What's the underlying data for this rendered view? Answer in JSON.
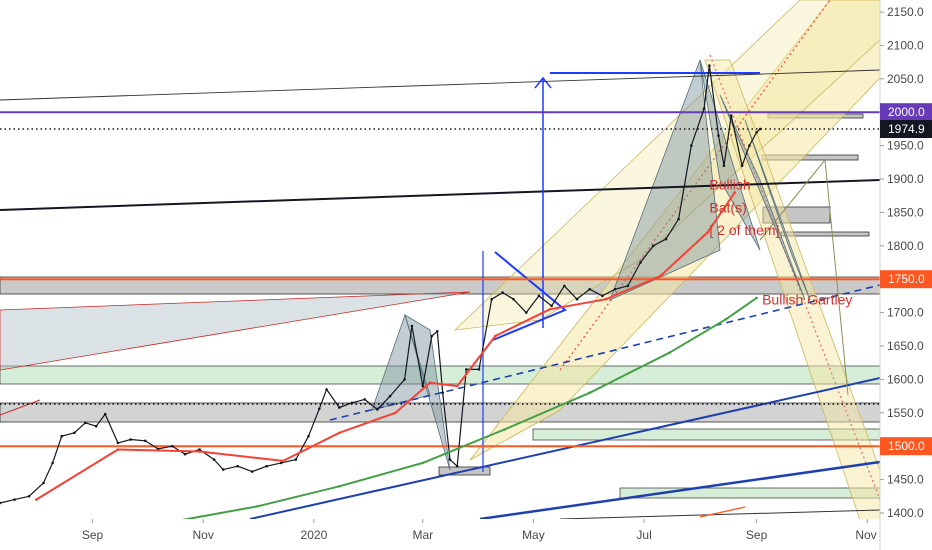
{
  "chart_data": {
    "type": "line",
    "y_axis": {
      "ticks": [
        2150,
        2100,
        2050,
        2000,
        1950,
        1900,
        1850,
        1800,
        1750,
        1700,
        1650,
        1600,
        1550,
        1500,
        1450,
        1400
      ],
      "tick_labels": [
        "2150.0",
        "2100.0",
        "2050.0",
        "2000.0",
        "1950.0",
        "1900.0",
        "1850.0",
        "1800.0",
        "1750.0",
        "1700.0",
        "1650.0",
        "1600.0",
        "1550.0",
        "1500.0",
        "1450.0",
        "1400.0"
      ],
      "ylim": [
        1391,
        2168
      ]
    },
    "x_axis": {
      "tick_labels": [
        "Sep",
        "Nov",
        "2020",
        "Mar",
        "May",
        "Jul",
        "Sep",
        "Nov"
      ],
      "tick_dates": [
        "2019-09-01",
        "2019-11-01",
        "2020-01-01",
        "2020-03-01",
        "2020-05-01",
        "2020-07-01",
        "2020-09-01",
        "2020-11-01"
      ],
      "xlim": [
        "2019-07-12",
        "2020-11-08"
      ]
    },
    "price_labels": [
      {
        "text": "2150.0",
        "value": 2150
      },
      {
        "text": "2000.0",
        "value": 2000,
        "highlight": true,
        "bg": "#673ab7"
      },
      {
        "text": "1974.9",
        "value": 1974.9,
        "highlight": true,
        "bg": "#131722"
      },
      {
        "text": "1750.0",
        "value": 1750,
        "highlight": true,
        "bg": "#ff5722"
      },
      {
        "text": "1500.0",
        "value": 1500,
        "highlight": true,
        "bg": "#ff5722"
      }
    ],
    "horizontal_levels": [
      {
        "value": 2000,
        "color": "#673ab7"
      },
      {
        "value": 1750,
        "color": "#ff5722"
      },
      {
        "value": 1500,
        "color": "#ff5722"
      },
      {
        "value": 1974.9,
        "color": "#131722",
        "style": "dotted"
      },
      {
        "value": 1563,
        "color": "#131722",
        "style": "dotted"
      }
    ],
    "series": [
      {
        "color": "#131722",
        "x": [
          "2019-07-12",
          "2019-07-20",
          "2019-07-28",
          "2019-08-05",
          "2019-08-10",
          "2019-08-15",
          "2019-08-22",
          "2019-08-28",
          "2019-09-03",
          "2019-09-08",
          "2019-09-15",
          "2019-09-22",
          "2019-09-30",
          "2019-10-07",
          "2019-10-15",
          "2019-10-22",
          "2019-10-30",
          "2019-11-07",
          "2019-11-12",
          "2019-11-20",
          "2019-11-28",
          "2019-12-06",
          "2019-12-14",
          "2019-12-22",
          "2019-12-29",
          "2020-01-04",
          "2020-01-08",
          "2020-01-15",
          "2020-01-22",
          "2020-01-29",
          "2020-02-05",
          "2020-02-12",
          "2020-02-20",
          "2020-02-24",
          "2020-03-01",
          "2020-03-06",
          "2020-03-09",
          "2020-03-12",
          "2020-03-16",
          "2020-03-20",
          "2020-03-25",
          "2020-04-01",
          "2020-04-08",
          "2020-04-14",
          "2020-04-20",
          "2020-04-27",
          "2020-05-04",
          "2020-05-11",
          "2020-05-18",
          "2020-05-25",
          "2020-06-01",
          "2020-06-08",
          "2020-06-15",
          "2020-06-22",
          "2020-06-29",
          "2020-07-06",
          "2020-07-13",
          "2020-07-20",
          "2020-07-27",
          "2020-08-03",
          "2020-08-06",
          "2020-08-11",
          "2020-08-14",
          "2020-08-18",
          "2020-08-24",
          "2020-08-28",
          "2020-09-01",
          "2020-09-03"
        ],
        "values": [
          1415,
          1420,
          1425,
          1445,
          1475,
          1515,
          1520,
          1535,
          1530,
          1548,
          1505,
          1510,
          1508,
          1496,
          1500,
          1488,
          1495,
          1480,
          1465,
          1470,
          1462,
          1470,
          1475,
          1480,
          1515,
          1556,
          1585,
          1558,
          1565,
          1570,
          1555,
          1575,
          1600,
          1680,
          1590,
          1665,
          1672,
          1580,
          1480,
          1470,
          1615,
          1615,
          1720,
          1730,
          1720,
          1700,
          1725,
          1710,
          1740,
          1720,
          1735,
          1725,
          1735,
          1740,
          1775,
          1800,
          1810,
          1840,
          1950,
          2005,
          2070,
          1965,
          1920,
          1995,
          1920,
          1950,
          1970,
          1975
        ]
      },
      {
        "color": "#f44336",
        "x": [
          "2019-08-01",
          "2019-09-15",
          "2019-10-30",
          "2019-12-15",
          "2020-01-15",
          "2020-02-15",
          "2020-03-05",
          "2020-03-20",
          "2020-04-10",
          "2020-05-10",
          "2020-06-10",
          "2020-07-10",
          "2020-08-05",
          "2020-08-20"
        ],
        "values": [
          1420,
          1495,
          1492,
          1478,
          1520,
          1550,
          1595,
          1590,
          1665,
          1705,
          1720,
          1755,
          1820,
          1880
        ]
      },
      {
        "color": "#43a047",
        "x": [
          "2019-10-01",
          "2019-12-01",
          "2020-01-15",
          "2020-03-01",
          "2020-04-15",
          "2020-06-01",
          "2020-07-15",
          "2020-08-15",
          "2020-09-01"
        ],
        "values": [
          1380,
          1410,
          1440,
          1475,
          1525,
          1580,
          1640,
          1690,
          1722
        ]
      }
    ],
    "annotations": [
      {
        "text": "Bullish",
        "date": "2020-08-06",
        "value": 1884
      },
      {
        "text": "Bat(s)",
        "date": "2020-08-06",
        "value": 1850
      },
      {
        "text": "[ 2 of them]",
        "date": "2020-08-06",
        "value": 1816
      },
      {
        "text": "Bullish Gartley",
        "date": "2020-09-04",
        "value": 1712
      }
    ],
    "grid": false
  }
}
